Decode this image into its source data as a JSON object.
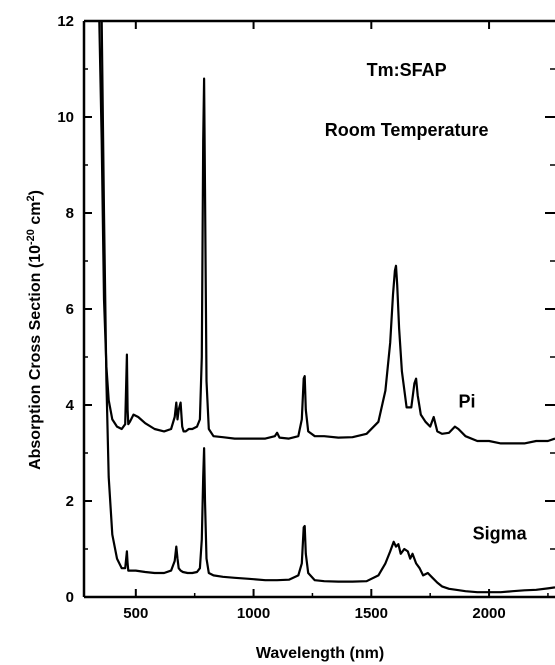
{
  "chart_data": {
    "type": "line",
    "title": "",
    "xlabel": "Wavelength (nm)",
    "ylabel_main": "Absorption Cross Section (10",
    "ylabel_sup": "-20",
    "ylabel_mid": " cm",
    "ylabel_sup2": "2",
    "ylabel_end": ")",
    "xlim": [
      280,
      2280
    ],
    "ylim": [
      0,
      12
    ],
    "x_ticks": [
      500,
      1000,
      1500,
      2000
    ],
    "y_ticks": [
      0,
      2,
      4,
      6,
      8,
      10,
      12
    ],
    "grid": false,
    "annotations": [
      {
        "text": "Tm:SFAP",
        "x": 1650,
        "y": 10.85
      },
      {
        "text": "Room Temperature",
        "x": 1650,
        "y": 9.6
      }
    ],
    "series": [
      {
        "name": "Pi",
        "label_pos": {
          "x": 1870,
          "y": 3.95
        },
        "x": [
          345,
          355,
          365,
          375,
          385,
          400,
          420,
          440,
          455,
          462,
          465,
          468,
          475,
          490,
          510,
          540,
          580,
          620,
          650,
          665,
          672,
          677,
          682,
          690,
          697,
          703,
          712,
          725,
          740,
          760,
          772,
          780,
          786,
          790,
          794,
          800,
          810,
          830,
          870,
          920,
          980,
          1050,
          1090,
          1100,
          1110,
          1150,
          1190,
          1205,
          1213,
          1217,
          1222,
          1232,
          1260,
          1300,
          1360,
          1420,
          1480,
          1530,
          1560,
          1580,
          1592,
          1600,
          1605,
          1610,
          1618,
          1630,
          1650,
          1670,
          1683,
          1690,
          1697,
          1710,
          1730,
          1750,
          1765,
          1780,
          1800,
          1830,
          1855,
          1870,
          1900,
          1950,
          2000,
          2050,
          2100,
          2150,
          2200,
          2250,
          2280
        ],
        "values": [
          12.0,
          9.5,
          6.2,
          4.8,
          4.1,
          3.7,
          3.55,
          3.5,
          3.6,
          5.05,
          3.9,
          3.6,
          3.65,
          3.8,
          3.75,
          3.62,
          3.5,
          3.45,
          3.5,
          3.75,
          4.05,
          3.7,
          3.9,
          4.05,
          3.55,
          3.45,
          3.45,
          3.5,
          3.5,
          3.55,
          3.7,
          5.0,
          9.5,
          10.8,
          8.5,
          4.5,
          3.5,
          3.35,
          3.33,
          3.3,
          3.3,
          3.3,
          3.35,
          3.42,
          3.32,
          3.3,
          3.35,
          3.7,
          4.55,
          4.6,
          3.9,
          3.45,
          3.35,
          3.35,
          3.32,
          3.33,
          3.4,
          3.65,
          4.3,
          5.3,
          6.3,
          6.8,
          6.9,
          6.5,
          5.6,
          4.7,
          3.95,
          3.95,
          4.45,
          4.55,
          4.2,
          3.8,
          3.65,
          3.55,
          3.75,
          3.45,
          3.4,
          3.42,
          3.55,
          3.5,
          3.35,
          3.25,
          3.25,
          3.2,
          3.2,
          3.2,
          3.25,
          3.25,
          3.3
        ]
      },
      {
        "name": "Sigma",
        "label_pos": {
          "x": 1930,
          "y": 1.2
        },
        "x": [
          355,
          365,
          375,
          385,
          400,
          420,
          440,
          455,
          462,
          465,
          468,
          475,
          500,
          540,
          580,
          620,
          650,
          665,
          672,
          677,
          682,
          690,
          700,
          720,
          740,
          760,
          772,
          780,
          786,
          790,
          794,
          800,
          810,
          830,
          870,
          920,
          980,
          1050,
          1100,
          1150,
          1190,
          1205,
          1213,
          1217,
          1222,
          1232,
          1260,
          1300,
          1360,
          1420,
          1480,
          1530,
          1560,
          1580,
          1595,
          1605,
          1615,
          1625,
          1640,
          1655,
          1665,
          1675,
          1690,
          1705,
          1720,
          1740,
          1760,
          1780,
          1800,
          1830,
          1860,
          1900,
          1950,
          2000,
          2050,
          2100,
          2150,
          2200,
          2250,
          2280
        ],
        "values": [
          12.0,
          8.0,
          4.5,
          2.5,
          1.3,
          0.8,
          0.6,
          0.6,
          0.95,
          0.7,
          0.55,
          0.55,
          0.55,
          0.52,
          0.5,
          0.5,
          0.55,
          0.75,
          1.05,
          0.8,
          0.6,
          0.55,
          0.52,
          0.5,
          0.5,
          0.52,
          0.6,
          1.2,
          2.5,
          3.1,
          2.0,
          0.8,
          0.5,
          0.45,
          0.42,
          0.4,
          0.38,
          0.35,
          0.35,
          0.36,
          0.45,
          0.7,
          1.45,
          1.48,
          0.9,
          0.5,
          0.35,
          0.33,
          0.32,
          0.32,
          0.33,
          0.45,
          0.7,
          0.95,
          1.15,
          1.05,
          1.1,
          0.9,
          1.0,
          0.95,
          0.8,
          0.9,
          0.7,
          0.6,
          0.45,
          0.5,
          0.4,
          0.3,
          0.22,
          0.17,
          0.15,
          0.12,
          0.1,
          0.1,
          0.1,
          0.12,
          0.14,
          0.15,
          0.18,
          0.2
        ]
      }
    ]
  }
}
